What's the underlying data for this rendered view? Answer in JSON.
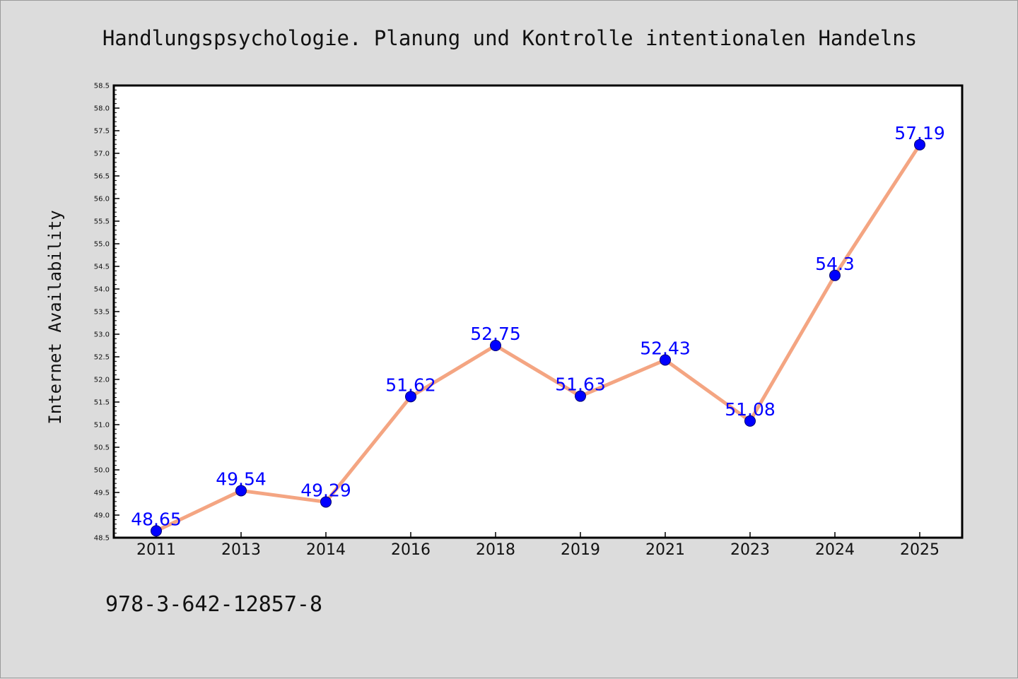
{
  "chart_data": {
    "type": "line",
    "title": "Handlungspsychologie. Planung und Kontrolle intentionalen Handelns",
    "xlabel": "",
    "ylabel": "Internet Availability",
    "categories": [
      "2011",
      "2013",
      "2014",
      "2016",
      "2018",
      "2019",
      "2021",
      "2023",
      "2024",
      "2025"
    ],
    "values": [
      48.65,
      49.54,
      49.29,
      51.62,
      52.75,
      51.63,
      52.43,
      51.08,
      54.3,
      57.19
    ],
    "data_labels": [
      "48.65",
      "49.54",
      "49.29",
      "51.62",
      "52.75",
      "51.63",
      "52.43",
      "51.08",
      "54.3",
      "57.19"
    ],
    "ylim": [
      48.5,
      58.5
    ],
    "ytick_step": 0.5,
    "grid": false,
    "legend": "none",
    "line_color": "#f4a582",
    "marker_color": "#0000ff",
    "label_color": "#0000ff",
    "footer_text": "978-3-642-12857-8"
  }
}
